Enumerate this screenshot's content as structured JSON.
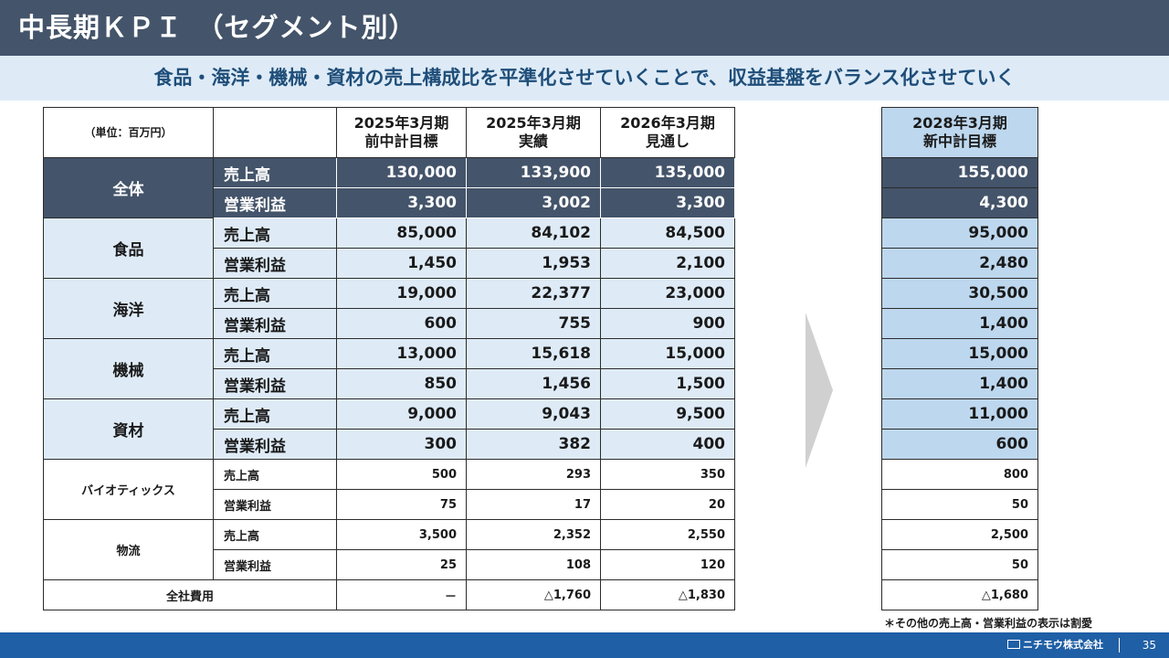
{
  "title": "中長期ＫＰＩ　（セグメント別）",
  "subtitle": "食品・海洋・機械・資材の売上構成比を平準化させていくことで、収益基盤をバランス化させていく",
  "table": {
    "unit": "（単位：百万円）",
    "col1": [
      "2025年3月期",
      "前中計目標"
    ],
    "col2": [
      "2025年3月期",
      "実績"
    ],
    "col3": [
      "2026年3月期",
      "見通し"
    ],
    "rows": [
      {
        "segment": "全体",
        "label": "売上高",
        "v": [
          "130,000",
          "133,900",
          "135,000"
        ]
      },
      {
        "label": "営業利益",
        "v": [
          "3,300",
          "3,002",
          "3,300"
        ]
      },
      {
        "segment": "食品",
        "label": "売上高",
        "v": [
          "85,000",
          "84,102",
          "84,500"
        ]
      },
      {
        "label": "営業利益",
        "v": [
          "1,450",
          "1,953",
          "2,100"
        ]
      },
      {
        "segment": "海洋",
        "label": "売上高",
        "v": [
          "19,000",
          "22,377",
          "23,000"
        ]
      },
      {
        "label": "営業利益",
        "v": [
          "600",
          "755",
          "900"
        ]
      },
      {
        "segment": "機械",
        "label": "売上高",
        "v": [
          "13,000",
          "15,618",
          "15,000"
        ]
      },
      {
        "label": "営業利益",
        "v": [
          "850",
          "1,456",
          "1,500"
        ]
      },
      {
        "segment": "資材",
        "label": "売上高",
        "v": [
          "9,000",
          "9,043",
          "9,500"
        ]
      },
      {
        "label": "営業利益",
        "v": [
          "300",
          "382",
          "400"
        ]
      },
      {
        "segment": "バイオティックス",
        "label": "売上高",
        "v": [
          "500",
          "293",
          "350"
        ]
      },
      {
        "label": "営業利益",
        "v": [
          "75",
          "17",
          "20"
        ]
      },
      {
        "segment": "物流",
        "label": "売上高",
        "v": [
          "3,500",
          "2,352",
          "2,550"
        ]
      },
      {
        "label": "営業利益",
        "v": [
          "25",
          "108",
          "120"
        ]
      },
      {
        "label": "全社費用",
        "v": [
          "－",
          "△1,760",
          "△1,830"
        ]
      }
    ]
  },
  "target": {
    "header": [
      "2028年3月期",
      "新中計目標"
    ],
    "values": [
      "155,000",
      "4,300",
      "95,000",
      "2,480",
      "30,500",
      "1,400",
      "15,000",
      "1,400",
      "11,000",
      "600",
      "800",
      "50",
      "2,500",
      "50",
      "△1,680"
    ]
  },
  "footnote": "＊その他の売上高・営業利益の表示は割愛",
  "footer": {
    "company": "ニチモウ株式会社",
    "page": "35"
  }
}
